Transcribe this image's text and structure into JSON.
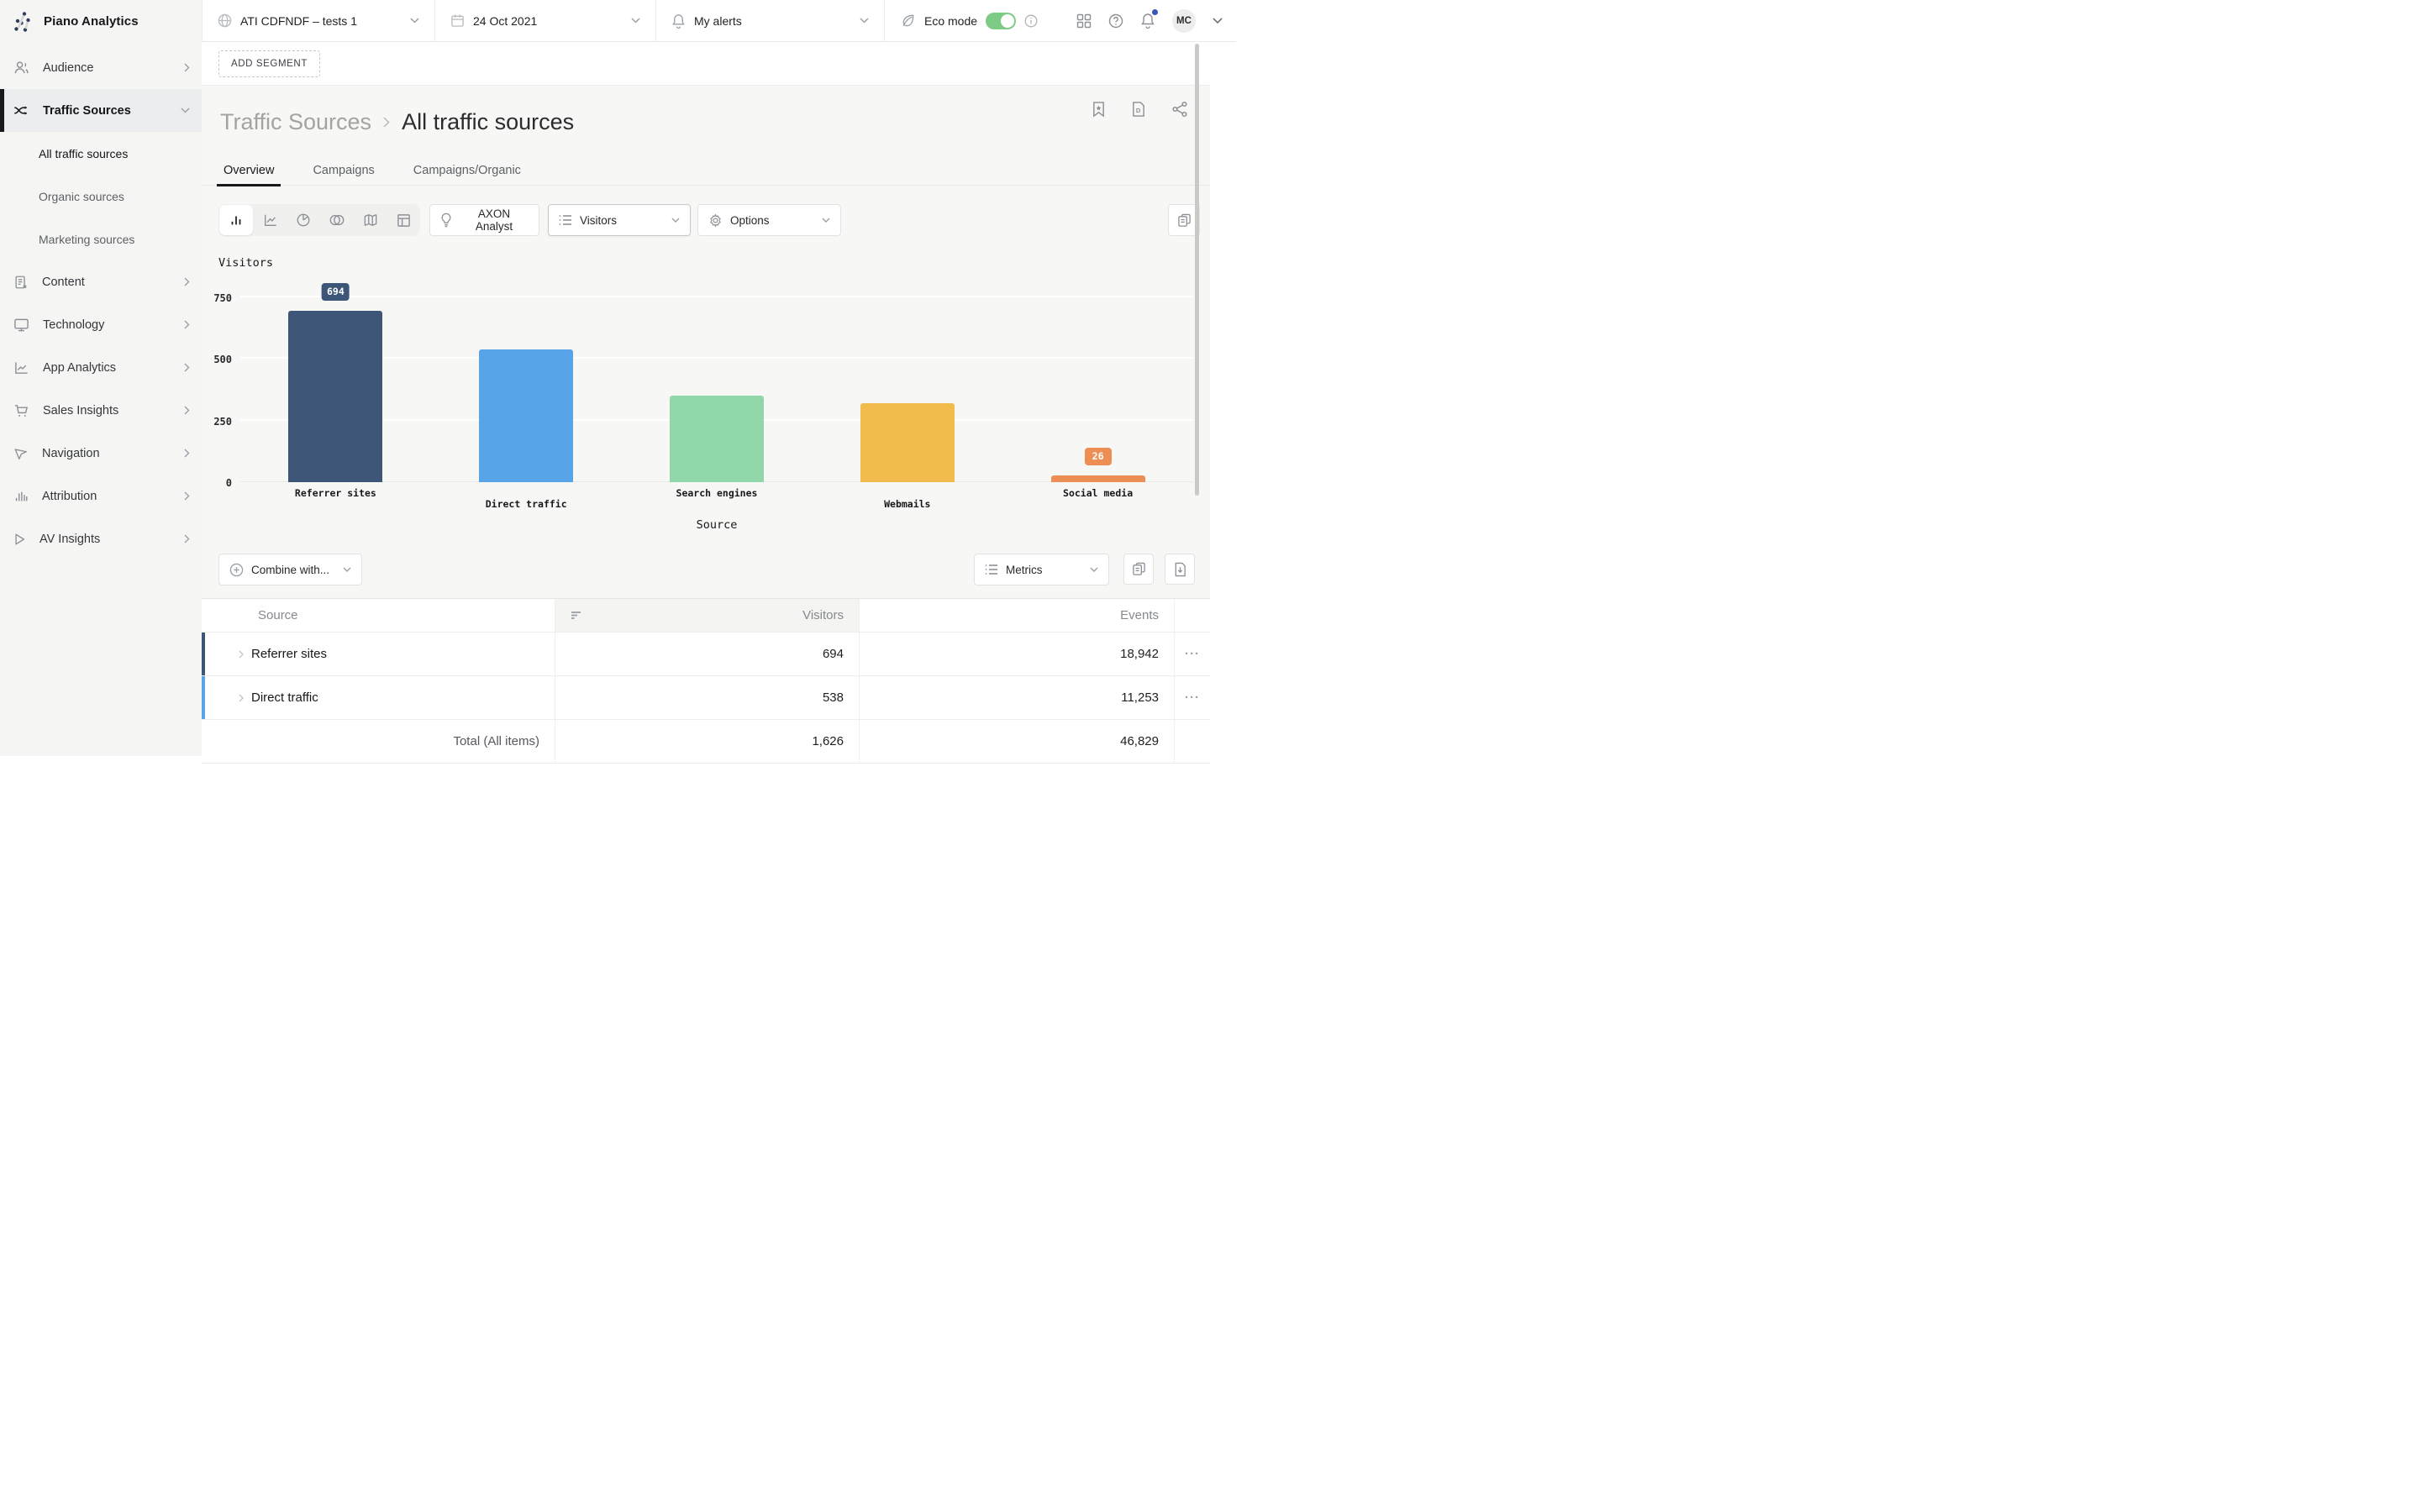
{
  "topbar": {
    "brand": "Piano Analytics",
    "workspace": "ATI CDFNDF – tests 1",
    "date": "24 Oct 2021",
    "alerts": "My alerts",
    "eco_label": "Eco mode",
    "eco_on": true,
    "avatar_initials": "MC"
  },
  "sidebar": {
    "items": [
      {
        "label": "Audience",
        "icon": "audience"
      },
      {
        "label": "Traffic Sources",
        "icon": "shuffle",
        "expanded": true,
        "active": true
      },
      {
        "label": "Content",
        "icon": "document"
      },
      {
        "label": "Technology",
        "icon": "monitor"
      },
      {
        "label": "App Analytics",
        "icon": "line-chart"
      },
      {
        "label": "Sales Insights",
        "icon": "cart"
      },
      {
        "label": "Navigation",
        "icon": "cursor"
      },
      {
        "label": "Attribution",
        "icon": "bars"
      },
      {
        "label": "AV Insights",
        "icon": "play"
      }
    ],
    "traffic_children": [
      {
        "label": "All traffic sources",
        "current": true
      },
      {
        "label": "Organic sources"
      },
      {
        "label": "Marketing sources"
      }
    ]
  },
  "segment_bar": {
    "add_segment_label": "ADD SEGMENT"
  },
  "page": {
    "breadcrumb": {
      "section": "Traffic Sources",
      "current": "All traffic sources"
    },
    "tabs": [
      {
        "label": "Overview",
        "active": true
      },
      {
        "label": "Campaigns"
      },
      {
        "label": "Campaigns/Organic"
      }
    ]
  },
  "toolbar": {
    "chart_types": [
      "bar-chart",
      "line-chart",
      "pie-chart",
      "venn",
      "map",
      "table-layout"
    ],
    "active_chart_type": "bar-chart",
    "axon_label": "AXON Analyst",
    "metric_selector_label": "Visitors",
    "options_label": "Options"
  },
  "chart_data": {
    "type": "bar",
    "title": "Visitors",
    "xlabel": "Source",
    "ylabel": "Visitors",
    "categories": [
      "Referrer sites",
      "Direct traffic",
      "Search engines",
      "Webmails",
      "Social media"
    ],
    "values": [
      694,
      538,
      350,
      320,
      26
    ],
    "value_labels_shown": {
      "0": "694",
      "4": "26"
    },
    "colors": [
      "#3d5677",
      "#58a4e9",
      "#92d7a9",
      "#f1bb4e",
      "#ed8e55"
    ],
    "yticks": [
      0,
      250,
      500,
      750
    ],
    "ylim": [
      0,
      795
    ],
    "grid": true,
    "legend": "none"
  },
  "combine_bar": {
    "combine_label": "Combine with...",
    "metrics_label": "Metrics"
  },
  "table": {
    "columns": {
      "source": "Source",
      "visitors": "Visitors",
      "events": "Events"
    },
    "sorted_column": "Visitors",
    "rows": [
      {
        "label": "Referrer sites",
        "visitors": "694",
        "events": "18,942",
        "accent": "#3d5677",
        "menu": "···"
      },
      {
        "label": "Direct traffic",
        "visitors": "538",
        "events": "11,253",
        "accent": "#58a4e9",
        "menu": "···"
      }
    ],
    "total": {
      "label": "Total (All items)",
      "visitors": "1,626",
      "events": "46,829"
    }
  }
}
